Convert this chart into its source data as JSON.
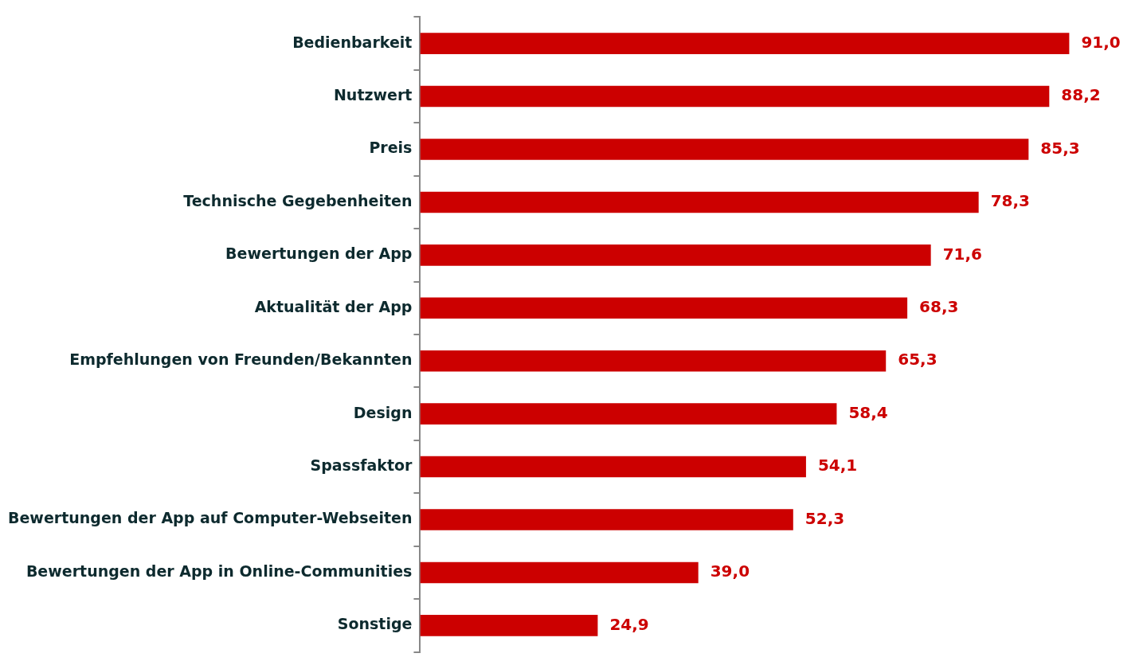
{
  "chart_data": {
    "type": "bar",
    "orientation": "horizontal",
    "categories": [
      "Bedienbarkeit",
      "Nutzwert",
      "Preis",
      "Technische Gegebenheiten",
      "Bewertungen der App",
      "Aktualität der App",
      "Empfehlungen von Freunden/Bekannten",
      "Design",
      "Spassfaktor",
      "Bewertungen der App auf Computer-Webseiten",
      "Bewertungen der App in Online-Communities",
      "Sonstige"
    ],
    "values": [
      91.0,
      88.2,
      85.3,
      78.3,
      71.6,
      68.3,
      65.3,
      58.4,
      54.1,
      52.3,
      39.0,
      24.9
    ],
    "value_labels": [
      "91,0",
      "88,2",
      "85,3",
      "78,3",
      "71,6",
      "68,3",
      "65,3",
      "58,4",
      "54,1",
      "52,3",
      "39,0",
      "24,9"
    ],
    "color": "#cc0000",
    "tick_labels": "y",
    "legend": false
  }
}
